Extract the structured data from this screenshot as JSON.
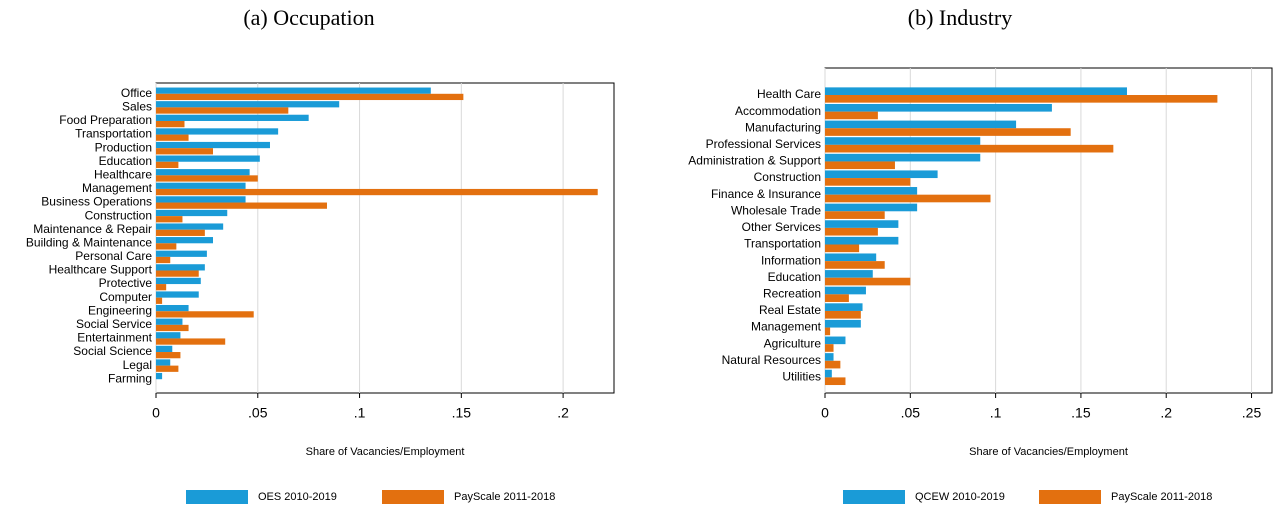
{
  "chart_data": [
    {
      "type": "bar",
      "orientation": "horizontal",
      "title": "(a) Occupation",
      "x_label": "Share of Vacancies/Employment",
      "categories": [
        "Office",
        "Sales",
        "Food Preparation",
        "Transportation",
        "Production",
        "Education",
        "Healthcare",
        "Management",
        "Business Operations",
        "Construction",
        "Maintenance & Repair",
        "Building & Maintenance",
        "Personal Care",
        "Healthcare Support",
        "Protective",
        "Computer",
        "Engineering",
        "Social Service",
        "Entertainment",
        "Social Science",
        "Legal",
        "Farming"
      ],
      "series": [
        {
          "name": "OES 2010-2019",
          "color": "#1a9bd7",
          "values": [
            0.135,
            0.09,
            0.075,
            0.06,
            0.056,
            0.051,
            0.046,
            0.044,
            0.044,
            0.035,
            0.033,
            0.028,
            0.025,
            0.024,
            0.022,
            0.021,
            0.016,
            0.013,
            0.012,
            0.008,
            0.007,
            0.003
          ]
        },
        {
          "name": "PayScale 2011-2018",
          "color": "#e3700f",
          "values": [
            0.151,
            0.065,
            0.014,
            0.016,
            0.028,
            0.011,
            0.05,
            0.217,
            0.084,
            0.013,
            0.024,
            0.01,
            0.007,
            0.021,
            0.005,
            0.003,
            0.048,
            0.016,
            0.034,
            0.012,
            0.011,
            0.0
          ]
        }
      ],
      "xlim": [
        0,
        0.225
      ],
      "xticks": [
        0,
        {
          "value": 0.05,
          "label": ".05"
        },
        {
          "value": 0.1,
          "label": ".1"
        },
        {
          "value": 0.15,
          "label": ".15"
        },
        {
          "value": 0.2,
          "label": ".2"
        }
      ],
      "grid": true
    },
    {
      "type": "bar",
      "orientation": "horizontal",
      "title": "(b) Industry",
      "x_label": "Share of Vacancies/Employment",
      "categories": [
        "Health Care",
        "Accommodation",
        "Manufacturing",
        "Professional Services",
        "Administration & Support",
        "Construction",
        "Finance & Insurance",
        "Wholesale Trade",
        "Other Services",
        "Transportation",
        "Information",
        "Education",
        "Recreation",
        "Real Estate",
        "Management",
        "Agriculture",
        "Natural Resources",
        "Utilities"
      ],
      "series": [
        {
          "name": "QCEW 2010-2019",
          "color": "#1a9bd7",
          "values": [
            0.177,
            0.133,
            0.112,
            0.091,
            0.091,
            0.066,
            0.054,
            0.054,
            0.043,
            0.043,
            0.03,
            0.028,
            0.024,
            0.022,
            0.021,
            0.012,
            0.005,
            0.004
          ]
        },
        {
          "name": "PayScale 2011-2018",
          "color": "#e3700f",
          "values": [
            0.23,
            0.031,
            0.144,
            0.169,
            0.041,
            0.05,
            0.097,
            0.035,
            0.031,
            0.02,
            0.035,
            0.05,
            0.014,
            0.021,
            0.003,
            0.005,
            0.009,
            0.012
          ]
        }
      ],
      "xlim": [
        0,
        0.262
      ],
      "xticks": [
        0,
        {
          "value": 0.05,
          "label": ".05"
        },
        {
          "value": 0.1,
          "label": ".1"
        },
        {
          "value": 0.15,
          "label": ".15"
        },
        {
          "value": 0.2,
          "label": ".2"
        },
        {
          "value": 0.25,
          "label": ".25"
        }
      ],
      "grid": true
    }
  ]
}
